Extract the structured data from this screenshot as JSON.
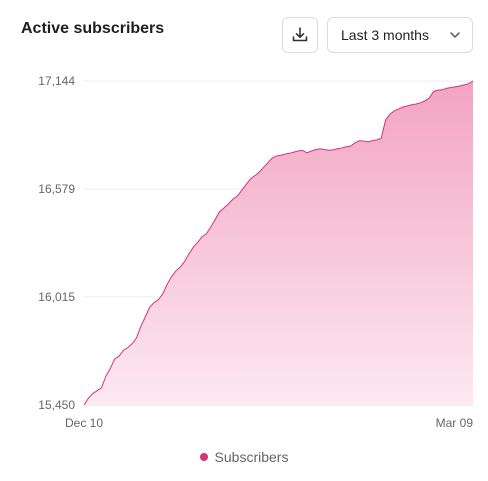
{
  "header": {
    "title": "Active subscribers",
    "range_label": "Last 3 months"
  },
  "colors": {
    "accent": "#d6337a",
    "fill_top": "#f2a4c1",
    "fill_bottom": "#fde9f1",
    "grid": "#eeeeee"
  },
  "icons": {
    "download": "download-icon",
    "chevron": "chevron-down-icon"
  },
  "chart_data": {
    "type": "area",
    "title": "Active subscribers",
    "series": [
      {
        "name": "Subscribers",
        "values": [
          15450,
          15485,
          15510,
          15525,
          15540,
          15600,
          15640,
          15690,
          15705,
          15735,
          15750,
          15770,
          15800,
          15860,
          15910,
          15960,
          15985,
          16000,
          16030,
          16080,
          16120,
          16150,
          16170,
          16200,
          16240,
          16275,
          16300,
          16330,
          16345,
          16380,
          16420,
          16460,
          16480,
          16500,
          16525,
          16540,
          16570,
          16600,
          16630,
          16648,
          16665,
          16690,
          16715,
          16740,
          16752,
          16756,
          16762,
          16766,
          16772,
          16778,
          16782,
          16768,
          16778,
          16785,
          16790,
          16786,
          16782,
          16784,
          16790,
          16794,
          16800,
          16804,
          16820,
          16832,
          16830,
          16826,
          16832,
          16836,
          16845,
          16940,
          16970,
          16988,
          16998,
          17008,
          17014,
          17020,
          17024,
          17030,
          17040,
          17055,
          17090,
          17096,
          17098,
          17106,
          17110,
          17114,
          17118,
          17124,
          17130,
          17144
        ]
      }
    ],
    "x_labels": [
      "Dec 10",
      "Mar 09"
    ],
    "y_ticks": [
      15450,
      16015,
      16579,
      17144
    ],
    "y_tick_labels": [
      "15,450",
      "16,015",
      "16,579",
      "17,144"
    ],
    "ylim": [
      15450,
      17144
    ],
    "grid": true,
    "legend": "bottom-center"
  }
}
